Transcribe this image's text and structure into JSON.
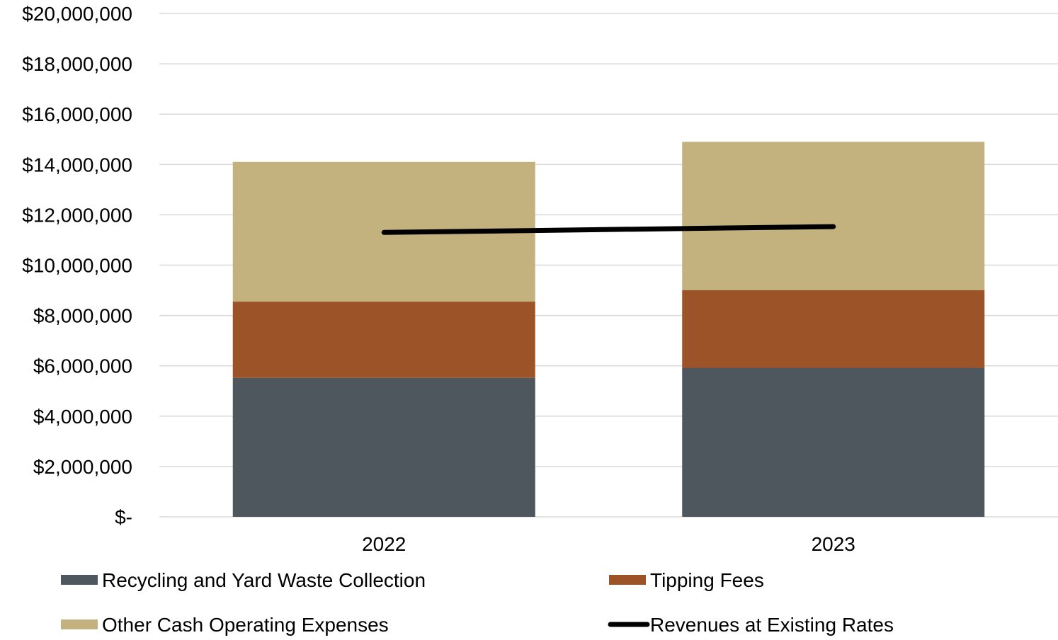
{
  "chart_data": {
    "type": "bar",
    "stacked": true,
    "categories": [
      "2022",
      "2023"
    ],
    "series": [
      {
        "name": "Recycling and Yard Waste Collection",
        "type": "bar",
        "color": "#4d575d",
        "values": [
          5520000,
          5920000
        ]
      },
      {
        "name": "Tipping Fees",
        "type": "bar",
        "color": "#9c5327",
        "values": [
          3030000,
          3090000
        ]
      },
      {
        "name": "Other Cash Operating Expenses",
        "type": "bar",
        "color": "#c3b27d",
        "values": [
          5550000,
          5890000
        ]
      },
      {
        "name": "Revenues at Existing Rates",
        "type": "line",
        "color": "#000000",
        "values": [
          11300000,
          11530000
        ]
      }
    ],
    "y_ticks": [
      "$-",
      "$2,000,000",
      "$4,000,000",
      "$6,000,000",
      "$8,000,000",
      "$10,000,000",
      "$12,000,000",
      "$14,000,000",
      "$16,000,000",
      "$18,000,000",
      "$20,000,000"
    ],
    "ylim": [
      0,
      20000000
    ],
    "y_step": 2000000,
    "grid": true,
    "legend_position": "bottom",
    "title": "",
    "xlabel": "",
    "ylabel": ""
  }
}
